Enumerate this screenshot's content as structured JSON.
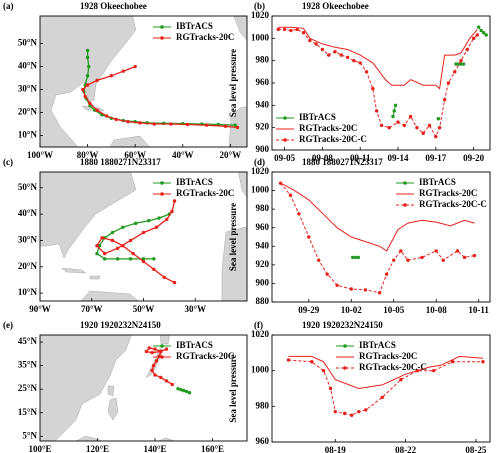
{
  "chart_data": [
    {
      "type": "map",
      "panel": "(a)",
      "title": "1928 Okeechobee",
      "xlim": [
        -100,
        -13
      ],
      "ylim": [
        5,
        62
      ],
      "xticks": [
        {
          "value": -100,
          "label": "100°W"
        },
        {
          "value": -80,
          "label": "80°W"
        },
        {
          "value": -60,
          "label": "60°W"
        },
        {
          "value": -40,
          "label": "40°W"
        },
        {
          "value": -20,
          "label": "20°W"
        }
      ],
      "yticks": [
        {
          "value": 10,
          "label": "10°N"
        },
        {
          "value": 20,
          "label": "20°N"
        },
        {
          "value": 30,
          "label": "30°N"
        },
        {
          "value": 40,
          "label": "40°N"
        },
        {
          "value": 50,
          "label": "50°N"
        }
      ],
      "legend": "upper right",
      "series": [
        {
          "name": "IBTrACS",
          "color": "#1f9a1f",
          "marker": true,
          "x": [
            -18,
            -25,
            -32,
            -40,
            -48,
            -55,
            -60,
            -65,
            -70,
            -74,
            -77,
            -79,
            -80.5,
            -81.5,
            -81,
            -80,
            -79.5,
            -80,
            -80
          ],
          "values": [
            14.5,
            14.8,
            15,
            15.2,
            15.3,
            15.5,
            16,
            16.5,
            17.5,
            19,
            21,
            23,
            26,
            29,
            32,
            36,
            40,
            44,
            47
          ]
        },
        {
          "name": "RGTracks-20C",
          "color": "#e8201a",
          "marker": true,
          "x": [
            -17,
            -22,
            -30,
            -38,
            -45,
            -52,
            -58,
            -63,
            -68,
            -72,
            -76,
            -79,
            -81,
            -82,
            -80,
            -76,
            -70,
            -65,
            -60
          ],
          "values": [
            13.5,
            14,
            14.5,
            14.8,
            15,
            15,
            15.5,
            16,
            17,
            18.5,
            21,
            24,
            27,
            30,
            32,
            34,
            36,
            38,
            40
          ]
        }
      ]
    },
    {
      "type": "line",
      "panel": "(b)",
      "title": "1928 Okeechobee",
      "ylabel": "Sea level pressure",
      "xlim": [
        248,
        265.3
      ],
      "ylim": [
        900,
        1020
      ],
      "xticks": [
        {
          "value": 249,
          "label": "09-05"
        },
        {
          "value": 252,
          "label": "09-08"
        },
        {
          "value": 255,
          "label": "09-11"
        },
        {
          "value": 258,
          "label": "09-14"
        },
        {
          "value": 261,
          "label": "09-17"
        },
        {
          "value": 264,
          "label": "09-20"
        }
      ],
      "yticks": [
        900,
        920,
        940,
        960,
        980,
        1000,
        1020
      ],
      "legend": "lower left",
      "series": [
        {
          "name": "IBTrACS",
          "color": "#1f9a1f",
          "marker": true,
          "x": [
            257.6,
            257.7,
            257.8,
            null,
            261.2,
            null,
            262.6,
            262.8,
            263,
            263.2,
            null,
            264.4,
            264.6,
            264.8,
            265
          ],
          "values": [
            930,
            935,
            940,
            null,
            928,
            null,
            977,
            977,
            977,
            977,
            null,
            1010,
            1007,
            1005,
            1003
          ]
        },
        {
          "name": "RGTracks-20C",
          "color": "#e8201a",
          "marker": false,
          "x": [
            248.5,
            249.5,
            250.5,
            251,
            252,
            253,
            254,
            255,
            256,
            257,
            257.5,
            258.5,
            259,
            260,
            261,
            261.3,
            261.7,
            262.5,
            263,
            263.7,
            264.3
          ],
          "values": [
            1010,
            1010,
            1009,
            1000,
            995,
            992,
            990,
            985,
            978,
            963,
            958,
            958,
            963,
            958,
            958,
            955,
            985,
            985,
            987,
            1000,
            1008
          ]
        },
        {
          "name": "RGTracks-20C-C",
          "color": "#e8201a",
          "marker": true,
          "linestyle": "dashed",
          "x": [
            248.5,
            249,
            249.5,
            250,
            250.5,
            251,
            251.5,
            252,
            252.5,
            253,
            253.5,
            254,
            254.5,
            255,
            255.5,
            256,
            256.3,
            256.7,
            257.3,
            258,
            258.5,
            259,
            259.5,
            260,
            260.5,
            261,
            261.3,
            261.7,
            262,
            262.5,
            263,
            263.5,
            264,
            264.3
          ],
          "values": [
            1008,
            1008,
            1007,
            1008,
            1005,
            998,
            995,
            990,
            985,
            988,
            985,
            983,
            980,
            978,
            970,
            955,
            935,
            922,
            920,
            925,
            922,
            930,
            920,
            915,
            922,
            912,
            920,
            945,
            960,
            970,
            980,
            990,
            1000,
            1003
          ]
        }
      ]
    },
    {
      "type": "map",
      "panel": "(c)",
      "title": "1880 1880271N23317",
      "xlim": [
        -90,
        -10
      ],
      "ylim": [
        7,
        56
      ],
      "xticks": [
        {
          "value": -90,
          "label": "90°W"
        },
        {
          "value": -70,
          "label": "70°W"
        },
        {
          "value": -50,
          "label": "50°W"
        },
        {
          "value": -30,
          "label": "30°W"
        }
      ],
      "yticks": [
        {
          "value": 10,
          "label": "10°N"
        },
        {
          "value": 20,
          "label": "20°N"
        },
        {
          "value": 30,
          "label": "30°N"
        },
        {
          "value": 40,
          "label": "40°N"
        },
        {
          "value": 50,
          "label": "50°N"
        }
      ],
      "legend": "upper right",
      "series": [
        {
          "name": "IBTrACS",
          "color": "#1f9a1f",
          "marker": true,
          "x": [
            -46,
            -50,
            -55,
            -60,
            -65,
            -68,
            -67,
            -65,
            -62,
            -58,
            -53,
            -48,
            -44,
            -40
          ],
          "values": [
            23,
            23,
            23,
            23,
            23,
            25,
            28,
            31,
            33,
            35,
            36.5,
            37.5,
            38.5,
            40
          ]
        },
        {
          "name": "RGTracks-20C",
          "color": "#e8201a",
          "marker": true,
          "x": [
            -38,
            -42,
            -46,
            -50,
            -54,
            -58,
            -62,
            -66,
            -68,
            -65,
            -60,
            -55,
            -50,
            -45,
            -41,
            -39,
            -38
          ],
          "values": [
            14,
            16,
            19,
            22,
            25,
            28,
            30,
            31,
            28,
            25,
            27,
            30,
            33,
            35,
            38,
            41,
            45
          ]
        }
      ]
    },
    {
      "type": "line",
      "panel": "(d)",
      "title": "1880 1880271N23317",
      "ylabel": "Sea level pressure",
      "xlim": [
        270.4,
        285.8
      ],
      "ylim": [
        880,
        1020
      ],
      "xticks": [
        {
          "value": 273,
          "label": "09-29"
        },
        {
          "value": 276,
          "label": "10-02"
        },
        {
          "value": 279,
          "label": "10-05"
        },
        {
          "value": 282,
          "label": "10-08"
        },
        {
          "value": 285,
          "label": "10-11"
        }
      ],
      "yticks": [
        880,
        900,
        920,
        940,
        960,
        980,
        1000,
        1020
      ],
      "legend": "upper right",
      "series": [
        {
          "name": "IBTrACS",
          "color": "#1f9a1f",
          "marker": true,
          "x": [
            276.1,
            276.3,
            276.5
          ],
          "values": [
            928,
            928,
            928
          ]
        },
        {
          "name": "RGTracks-20C",
          "color": "#e8201a",
          "marker": false,
          "x": [
            271,
            272,
            273,
            274,
            275,
            276,
            277,
            278,
            278.5,
            279.3,
            280,
            281,
            282,
            283,
            284,
            284.7
          ],
          "values": [
            1008,
            1000,
            990,
            975,
            960,
            950,
            945,
            940,
            935,
            958,
            965,
            968,
            966,
            962,
            968,
            965
          ]
        },
        {
          "name": "RGTracks-20C-C",
          "color": "#e8201a",
          "marker": true,
          "linestyle": "dashed",
          "x": [
            271,
            271.7,
            272.3,
            273,
            273.7,
            274.3,
            275,
            276,
            277,
            278,
            278.5,
            279,
            279.5,
            280,
            281,
            282,
            282.5,
            283.5,
            284,
            284.7
          ],
          "values": [
            1008,
            995,
            975,
            950,
            925,
            910,
            898,
            894,
            893,
            890,
            910,
            925,
            935,
            925,
            928,
            935,
            925,
            935,
            928,
            930
          ]
        }
      ]
    },
    {
      "type": "map",
      "panel": "(e)",
      "title": "1920 1920232N24150",
      "xlim": [
        100,
        172
      ],
      "ylim": [
        3,
        48
      ],
      "xticks": [
        {
          "value": 100,
          "label": "100°E"
        },
        {
          "value": 120,
          "label": "120°E"
        },
        {
          "value": 140,
          "label": "140°E"
        },
        {
          "value": 160,
          "label": "160°E"
        }
      ],
      "yticks": [
        {
          "value": 5,
          "label": "5°N"
        },
        {
          "value": 15,
          "label": "15°N"
        },
        {
          "value": 25,
          "label": "25°N"
        },
        {
          "value": 35,
          "label": "35°N"
        },
        {
          "value": 45,
          "label": "45°N"
        }
      ],
      "legend": "upper right",
      "series": [
        {
          "name": "IBTrACS",
          "color": "#1f9a1f",
          "marker": true,
          "x": [
            152,
            151,
            150,
            149,
            148
          ],
          "values": [
            23.5,
            24,
            24.4,
            24.8,
            25.2
          ]
        },
        {
          "name": "RGTracks-20C",
          "color": "#e8201a",
          "marker": true,
          "x": [
            146,
            144,
            142,
            140,
            139,
            139.5,
            140.5,
            141.5,
            142,
            140,
            138,
            137,
            139,
            142,
            144
          ],
          "values": [
            27,
            28.5,
            30,
            31,
            33,
            35,
            37,
            39,
            41,
            42,
            42.5,
            41,
            40.5,
            41,
            42
          ]
        }
      ]
    },
    {
      "type": "line",
      "panel": "(f)",
      "title": "1920 1920232N24150",
      "ylabel": "Sea level pressure",
      "xlim": [
        229.3,
        238.6
      ],
      "ylim": [
        960,
        1020
      ],
      "xticks": [
        {
          "value": 232,
          "label": "08-19"
        },
        {
          "value": 235,
          "label": "08-22"
        },
        {
          "value": 238,
          "label": "08-25"
        }
      ],
      "yticks": [
        960,
        980,
        1000,
        1020
      ],
      "legend": "upper center",
      "series": [
        {
          "name": "IBTrACS",
          "color": "#1f9a1f",
          "marker": true,
          "x": [],
          "values": []
        },
        {
          "name": "RGTracks-20C",
          "color": "#e8201a",
          "marker": false,
          "x": [
            230,
            231,
            231.5,
            232,
            233,
            234,
            235,
            236,
            236.5,
            237.3,
            238.3
          ],
          "values": [
            1008,
            1008,
            1005,
            995,
            990,
            992,
            998,
            1002,
            1003,
            1008,
            1007
          ]
        },
        {
          "name": "RGTracks-20C-C",
          "color": "#e8201a",
          "marker": true,
          "linestyle": "dashed",
          "x": [
            230,
            231,
            231.5,
            231.8,
            232,
            232.4,
            232.7,
            233,
            233.3,
            234,
            234.8,
            235.5,
            236.2,
            237,
            238.3
          ],
          "values": [
            1006,
            1005,
            1000,
            990,
            977,
            976,
            975,
            977,
            978,
            985,
            995,
            1000,
            1000,
            1005,
            1005
          ]
        }
      ]
    }
  ]
}
